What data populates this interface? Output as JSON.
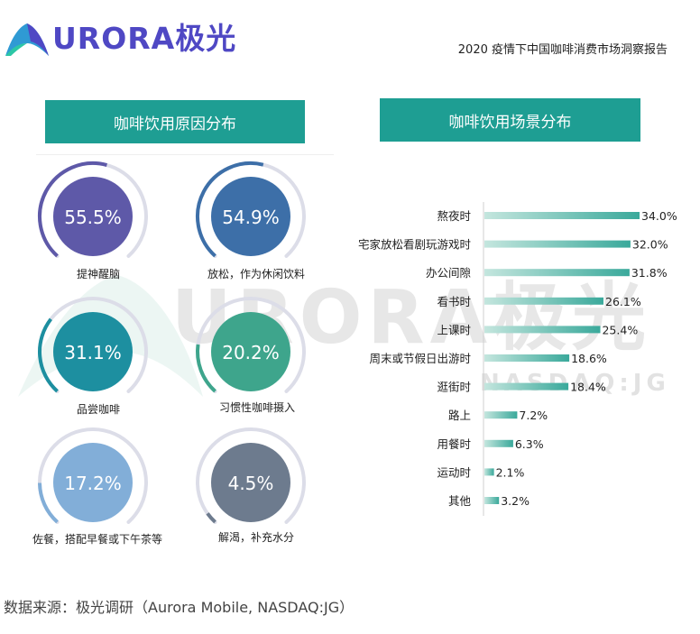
{
  "header": {
    "logo_text": "URORA极光",
    "report_title": "2020 疫情下中国咖啡消费市场洞察报告"
  },
  "watermark": {
    "text": "URORA极光",
    "sub": "NASDAQ:JG"
  },
  "colors": {
    "teal": "#1e9e93",
    "logo_purple": "#4f48c4",
    "track": "#dcdde8"
  },
  "chart_data": [
    {
      "type": "gauge",
      "title": "咖啡饮用原因分布",
      "items": [
        {
          "label": "提神醒脑",
          "value": 55.5,
          "display": "55.5%",
          "color": "#5e59a8"
        },
        {
          "label": "放松，作为休闲饮料",
          "value": 54.9,
          "display": "54.9%",
          "color": "#3d6fa8"
        },
        {
          "label": "品尝咖啡",
          "value": 31.1,
          "display": "31.1%",
          "color": "#1d8fa0"
        },
        {
          "label": "习惯性咖啡摄入",
          "value": 20.2,
          "display": "20.2%",
          "color": "#3ea58c"
        },
        {
          "label": "佐餐，搭配早餐或下午茶等",
          "value": 17.2,
          "display": "17.2%",
          "color": "#82aed8"
        },
        {
          "label": "解渴，补充水分",
          "value": 4.5,
          "display": "4.5%",
          "color": "#6d7b8e"
        }
      ]
    },
    {
      "type": "bar",
      "orientation": "horizontal",
      "title": "咖啡饮用场景分布",
      "categories": [
        "熬夜时",
        "宅家放松看剧玩游戏时",
        "办公间隙",
        "看书时",
        "上课时",
        "周末或节假日出游时",
        "逛街时",
        "路上",
        "用餐时",
        "运动时",
        "其他"
      ],
      "values": [
        34.0,
        32.0,
        31.8,
        26.1,
        25.4,
        18.6,
        18.4,
        7.2,
        6.3,
        2.1,
        3.2
      ],
      "value_labels": [
        "34.0%",
        "32.0%",
        "31.8%",
        "26.1%",
        "25.4%",
        "18.6%",
        "18.4%",
        "7.2%",
        "6.3%",
        "2.1%",
        "3.2%"
      ],
      "xlim": [
        0,
        34.0
      ],
      "bar_color": "#3aa99b"
    }
  ],
  "source": "数据来源：极光调研（Aurora Mobile, NASDAQ:JG）"
}
